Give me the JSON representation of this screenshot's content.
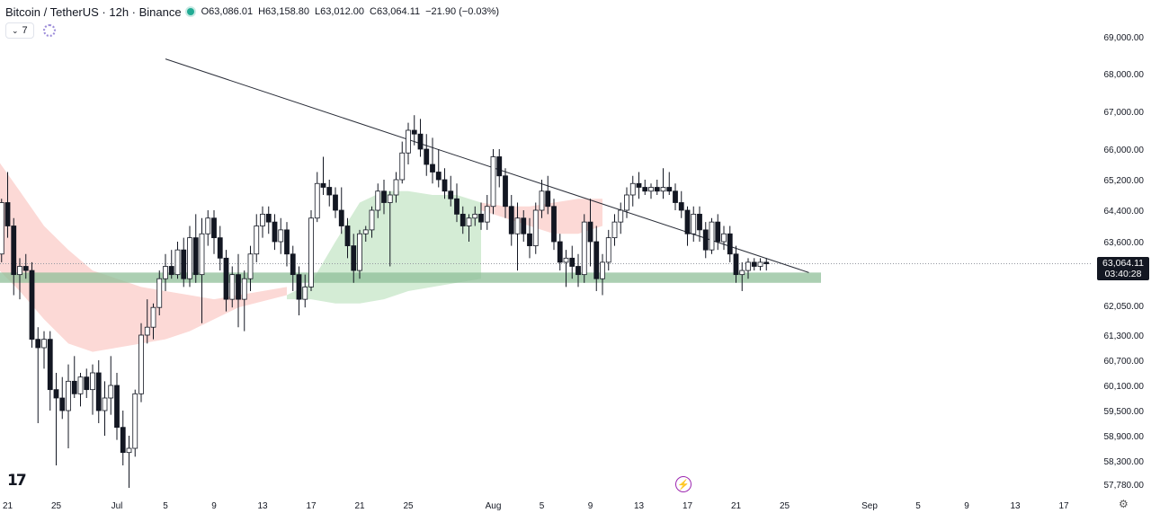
{
  "header": {
    "title": "Bitcoin / TetherUS · 12h · Binance",
    "open": "O63,086.01",
    "high": "H63,158.80",
    "low": "L63,012.00",
    "close": "C63,064.11",
    "change": "−21.90 (−0.03%)"
  },
  "indicators": {
    "count": "7"
  },
  "price_tag": {
    "price": "63,064.11",
    "countdown": "03:40:28"
  },
  "colors": {
    "up": "#ffffff",
    "down": "#131722",
    "cloud_bear": "#fcd9d6",
    "cloud_bull": "#d4ecd5",
    "support_zone": "#8fbf98",
    "trendline": "#2a2e39",
    "last_price_line": "#9598a1"
  },
  "icons": {
    "logo": "tradingview-logo-icon",
    "bolt": "lightning-icon",
    "settings": "gear-icon"
  },
  "chart_data": {
    "type": "candlestick",
    "interval": "12h",
    "ylim": [
      57700,
      69300
    ],
    "y_scale": "non-linear (axis labels unevenly spaced)",
    "y_ticks": [
      "69,000.00",
      "68,000.00",
      "67,000.00",
      "66,000.00",
      "65,200.00",
      "64,400.00",
      "63,600.00",
      "62,050.00",
      "61,300.00",
      "60,700.00",
      "60,100.00",
      "59,500.00",
      "58,900.00",
      "58,300.00",
      "57,780.00"
    ],
    "y_tick_values": [
      69000,
      68000,
      67000,
      66000,
      65200,
      64400,
      63600,
      62050,
      61300,
      60700,
      60100,
      59500,
      58900,
      58300,
      57780
    ],
    "x_ticks": [
      "21",
      "25",
      "Jul",
      "5",
      "9",
      "13",
      "17",
      "21",
      "25",
      "Aug",
      "5",
      "9",
      "13",
      "17",
      "21",
      "25",
      "Sep",
      "5",
      "9",
      "13",
      "17"
    ],
    "x_tick_days": [
      21,
      25,
      30,
      34,
      38,
      42,
      46,
      50,
      54,
      61,
      65,
      69,
      73,
      77,
      81,
      85,
      92,
      96,
      100,
      104,
      108
    ],
    "x_note": "days counted from June 1",
    "last_price": 63064.11,
    "candles": [
      {
        "t": 19.5,
        "o": 64200,
        "h": 64600,
        "l": 63800,
        "c": 64000
      },
      {
        "t": 20.0,
        "o": 64000,
        "h": 64400,
        "l": 63200,
        "c": 63300
      },
      {
        "t": 20.5,
        "o": 63300,
        "h": 64700,
        "l": 63100,
        "c": 64600
      },
      {
        "t": 21.0,
        "o": 64600,
        "h": 65400,
        "l": 63700,
        "c": 64000
      },
      {
        "t": 21.5,
        "o": 64000,
        "h": 64200,
        "l": 62300,
        "c": 62800
      },
      {
        "t": 22.0,
        "o": 62800,
        "h": 63200,
        "l": 62200,
        "c": 63000
      },
      {
        "t": 22.5,
        "o": 63000,
        "h": 63300,
        "l": 62700,
        "c": 62900
      },
      {
        "t": 23.0,
        "o": 62900,
        "h": 63100,
        "l": 61000,
        "c": 61200
      },
      {
        "t": 23.5,
        "o": 61200,
        "h": 61500,
        "l": 59200,
        "c": 61000
      },
      {
        "t": 24.0,
        "o": 61000,
        "h": 61400,
        "l": 60500,
        "c": 61200
      },
      {
        "t": 24.5,
        "o": 61200,
        "h": 61400,
        "l": 59500,
        "c": 60000
      },
      {
        "t": 25.0,
        "o": 60000,
        "h": 60400,
        "l": 58200,
        "c": 59800
      },
      {
        "t": 25.5,
        "o": 59800,
        "h": 60300,
        "l": 59300,
        "c": 59500
      },
      {
        "t": 26.0,
        "o": 59500,
        "h": 60600,
        "l": 58600,
        "c": 60200
      },
      {
        "t": 26.5,
        "o": 60200,
        "h": 60800,
        "l": 59800,
        "c": 59900
      },
      {
        "t": 27.0,
        "o": 59900,
        "h": 60400,
        "l": 59600,
        "c": 60300
      },
      {
        "t": 27.5,
        "o": 60300,
        "h": 60500,
        "l": 59800,
        "c": 60000
      },
      {
        "t": 28.0,
        "o": 60000,
        "h": 60600,
        "l": 59400,
        "c": 60400
      },
      {
        "t": 28.5,
        "o": 60400,
        "h": 60700,
        "l": 59200,
        "c": 59500
      },
      {
        "t": 29.0,
        "o": 59500,
        "h": 60200,
        "l": 58900,
        "c": 59800
      },
      {
        "t": 29.5,
        "o": 59800,
        "h": 60800,
        "l": 59400,
        "c": 60100
      },
      {
        "t": 30.0,
        "o": 60100,
        "h": 60400,
        "l": 58800,
        "c": 59100
      },
      {
        "t": 30.5,
        "o": 59100,
        "h": 59500,
        "l": 58200,
        "c": 58500
      },
      {
        "t": 31.0,
        "o": 58500,
        "h": 58900,
        "l": 57700,
        "c": 58600
      },
      {
        "t": 31.5,
        "o": 58600,
        "h": 60000,
        "l": 58400,
        "c": 59900
      },
      {
        "t": 32.0,
        "o": 59900,
        "h": 61600,
        "l": 59700,
        "c": 61300
      },
      {
        "t": 32.5,
        "o": 61300,
        "h": 62200,
        "l": 61100,
        "c": 61500
      },
      {
        "t": 33.0,
        "o": 61500,
        "h": 62100,
        "l": 61200,
        "c": 62000
      },
      {
        "t": 33.5,
        "o": 62000,
        "h": 62900,
        "l": 61800,
        "c": 62700
      },
      {
        "t": 34.0,
        "o": 62700,
        "h": 63300,
        "l": 62400,
        "c": 63000
      },
      {
        "t": 34.5,
        "o": 63000,
        "h": 63400,
        "l": 62700,
        "c": 62800
      },
      {
        "t": 35.0,
        "o": 62800,
        "h": 63600,
        "l": 62700,
        "c": 63400
      },
      {
        "t": 35.5,
        "o": 63400,
        "h": 63700,
        "l": 62500,
        "c": 62700
      },
      {
        "t": 36.0,
        "o": 62700,
        "h": 64000,
        "l": 62500,
        "c": 63700
      },
      {
        "t": 36.5,
        "o": 63700,
        "h": 64300,
        "l": 62600,
        "c": 62800
      },
      {
        "t": 37.0,
        "o": 62800,
        "h": 64200,
        "l": 61600,
        "c": 63800
      },
      {
        "t": 37.5,
        "o": 63800,
        "h": 64400,
        "l": 63500,
        "c": 64200
      },
      {
        "t": 38.0,
        "o": 64200,
        "h": 64400,
        "l": 63300,
        "c": 63700
      },
      {
        "t": 38.5,
        "o": 63700,
        "h": 64000,
        "l": 62900,
        "c": 63200
      },
      {
        "t": 39.0,
        "o": 63200,
        "h": 63400,
        "l": 61900,
        "c": 62200
      },
      {
        "t": 39.5,
        "o": 62200,
        "h": 63000,
        "l": 62000,
        "c": 62800
      },
      {
        "t": 40.0,
        "o": 62800,
        "h": 63300,
        "l": 61500,
        "c": 62200
      },
      {
        "t": 40.5,
        "o": 62200,
        "h": 62900,
        "l": 61400,
        "c": 62700
      },
      {
        "t": 41.0,
        "o": 62700,
        "h": 63500,
        "l": 62400,
        "c": 63300
      },
      {
        "t": 41.5,
        "o": 63300,
        "h": 64300,
        "l": 63100,
        "c": 64000
      },
      {
        "t": 42.0,
        "o": 64000,
        "h": 64500,
        "l": 63700,
        "c": 64300
      },
      {
        "t": 42.5,
        "o": 64300,
        "h": 64500,
        "l": 63800,
        "c": 64100
      },
      {
        "t": 43.0,
        "o": 64100,
        "h": 64300,
        "l": 63400,
        "c": 63600
      },
      {
        "t": 43.5,
        "o": 63600,
        "h": 64200,
        "l": 63300,
        "c": 63900
      },
      {
        "t": 44.0,
        "o": 63900,
        "h": 64100,
        "l": 63000,
        "c": 63300
      },
      {
        "t": 44.5,
        "o": 63300,
        "h": 63500,
        "l": 62400,
        "c": 62800
      },
      {
        "t": 45.0,
        "o": 62800,
        "h": 63000,
        "l": 61800,
        "c": 62200
      },
      {
        "t": 45.5,
        "o": 62200,
        "h": 62800,
        "l": 62000,
        "c": 62500
      },
      {
        "t": 46.0,
        "o": 62500,
        "h": 64400,
        "l": 62400,
        "c": 64200
      },
      {
        "t": 46.5,
        "o": 64200,
        "h": 65400,
        "l": 64100,
        "c": 65100
      },
      {
        "t": 47.0,
        "o": 65100,
        "h": 65800,
        "l": 64800,
        "c": 65000
      },
      {
        "t": 47.5,
        "o": 65000,
        "h": 65200,
        "l": 64500,
        "c": 64800
      },
      {
        "t": 48.0,
        "o": 64800,
        "h": 65000,
        "l": 64200,
        "c": 64400
      },
      {
        "t": 48.5,
        "o": 64400,
        "h": 65000,
        "l": 63800,
        "c": 64000
      },
      {
        "t": 49.0,
        "o": 64000,
        "h": 64200,
        "l": 63200,
        "c": 63500
      },
      {
        "t": 49.5,
        "o": 63500,
        "h": 63800,
        "l": 62600,
        "c": 62900
      },
      {
        "t": 50.0,
        "o": 62900,
        "h": 63900,
        "l": 62700,
        "c": 63800
      },
      {
        "t": 50.5,
        "o": 63800,
        "h": 64000,
        "l": 63600,
        "c": 63900
      },
      {
        "t": 51.0,
        "o": 63900,
        "h": 64500,
        "l": 63700,
        "c": 64400
      },
      {
        "t": 51.5,
        "o": 64400,
        "h": 65100,
        "l": 64200,
        "c": 64900
      },
      {
        "t": 52.0,
        "o": 64900,
        "h": 65200,
        "l": 64300,
        "c": 64600
      },
      {
        "t": 52.5,
        "o": 64600,
        "h": 64900,
        "l": 63000,
        "c": 64800
      },
      {
        "t": 53.0,
        "o": 64800,
        "h": 65400,
        "l": 64600,
        "c": 65200
      },
      {
        "t": 53.5,
        "o": 65200,
        "h": 66200,
        "l": 65100,
        "c": 65900
      },
      {
        "t": 54.0,
        "o": 65900,
        "h": 66700,
        "l": 65600,
        "c": 66500
      },
      {
        "t": 54.5,
        "o": 66500,
        "h": 66900,
        "l": 66100,
        "c": 66400
      },
      {
        "t": 55.0,
        "o": 66400,
        "h": 66800,
        "l": 65800,
        "c": 66000
      },
      {
        "t": 55.5,
        "o": 66000,
        "h": 66400,
        "l": 65300,
        "c": 65600
      },
      {
        "t": 56.0,
        "o": 65600,
        "h": 66300,
        "l": 65100,
        "c": 65400
      },
      {
        "t": 56.5,
        "o": 65400,
        "h": 66000,
        "l": 65000,
        "c": 65200
      },
      {
        "t": 57.0,
        "o": 65200,
        "h": 65500,
        "l": 64700,
        "c": 64900
      },
      {
        "t": 57.5,
        "o": 64900,
        "h": 65300,
        "l": 64500,
        "c": 64700
      },
      {
        "t": 58.0,
        "o": 64700,
        "h": 65100,
        "l": 64100,
        "c": 64300
      },
      {
        "t": 58.5,
        "o": 64300,
        "h": 64500,
        "l": 63800,
        "c": 64000
      },
      {
        "t": 59.0,
        "o": 64000,
        "h": 64300,
        "l": 63600,
        "c": 64200
      },
      {
        "t": 59.5,
        "o": 64200,
        "h": 64500,
        "l": 64000,
        "c": 64300
      },
      {
        "t": 60.0,
        "o": 64300,
        "h": 64600,
        "l": 63900,
        "c": 64100
      },
      {
        "t": 60.5,
        "o": 64100,
        "h": 64800,
        "l": 63900,
        "c": 64500
      },
      {
        "t": 61.0,
        "o": 64500,
        "h": 66000,
        "l": 64300,
        "c": 65800
      },
      {
        "t": 61.5,
        "o": 65800,
        "h": 66000,
        "l": 65000,
        "c": 65300
      },
      {
        "t": 62.0,
        "o": 65300,
        "h": 65500,
        "l": 64200,
        "c": 64500
      },
      {
        "t": 62.5,
        "o": 64500,
        "h": 64800,
        "l": 63500,
        "c": 63800
      },
      {
        "t": 63.0,
        "o": 63800,
        "h": 64600,
        "l": 62900,
        "c": 64200
      },
      {
        "t": 63.5,
        "o": 64200,
        "h": 64400,
        "l": 63600,
        "c": 63800
      },
      {
        "t": 64.0,
        "o": 63800,
        "h": 64200,
        "l": 63200,
        "c": 63500
      },
      {
        "t": 64.5,
        "o": 63500,
        "h": 64600,
        "l": 63300,
        "c": 64400
      },
      {
        "t": 65.0,
        "o": 64400,
        "h": 65200,
        "l": 64200,
        "c": 64900
      },
      {
        "t": 65.5,
        "o": 64900,
        "h": 65300,
        "l": 64300,
        "c": 64500
      },
      {
        "t": 66.0,
        "o": 64500,
        "h": 64700,
        "l": 63400,
        "c": 63600
      },
      {
        "t": 66.5,
        "o": 63600,
        "h": 63800,
        "l": 62900,
        "c": 63100
      },
      {
        "t": 67.0,
        "o": 63100,
        "h": 63400,
        "l": 62500,
        "c": 63200
      },
      {
        "t": 67.5,
        "o": 63200,
        "h": 63500,
        "l": 62700,
        "c": 63000
      },
      {
        "t": 68.0,
        "o": 63000,
        "h": 63300,
        "l": 62500,
        "c": 62800
      },
      {
        "t": 68.5,
        "o": 62800,
        "h": 64300,
        "l": 62600,
        "c": 64100
      },
      {
        "t": 69.0,
        "o": 64100,
        "h": 64700,
        "l": 63000,
        "c": 63600
      },
      {
        "t": 69.5,
        "o": 63600,
        "h": 64000,
        "l": 62400,
        "c": 62700
      },
      {
        "t": 70.0,
        "o": 62700,
        "h": 63300,
        "l": 62300,
        "c": 63100
      },
      {
        "t": 70.5,
        "o": 63100,
        "h": 63900,
        "l": 62900,
        "c": 63700
      },
      {
        "t": 71.0,
        "o": 63700,
        "h": 64300,
        "l": 63500,
        "c": 64100
      },
      {
        "t": 71.5,
        "o": 64100,
        "h": 64600,
        "l": 63800,
        "c": 64400
      },
      {
        "t": 72.0,
        "o": 64400,
        "h": 65000,
        "l": 64200,
        "c": 64800
      },
      {
        "t": 72.5,
        "o": 64800,
        "h": 65300,
        "l": 64500,
        "c": 65100
      },
      {
        "t": 73.0,
        "o": 65100,
        "h": 65400,
        "l": 64700,
        "c": 65000
      },
      {
        "t": 73.5,
        "o": 65000,
        "h": 65200,
        "l": 64800,
        "c": 64900
      },
      {
        "t": 74.0,
        "o": 64900,
        "h": 65100,
        "l": 64700,
        "c": 65000
      },
      {
        "t": 74.5,
        "o": 65000,
        "h": 65200,
        "l": 64800,
        "c": 64900
      },
      {
        "t": 75.0,
        "o": 64900,
        "h": 65500,
        "l": 64700,
        "c": 65000
      },
      {
        "t": 75.5,
        "o": 65000,
        "h": 65400,
        "l": 64800,
        "c": 64900
      },
      {
        "t": 76.0,
        "o": 64900,
        "h": 65100,
        "l": 64400,
        "c": 64600
      },
      {
        "t": 76.5,
        "o": 64600,
        "h": 64900,
        "l": 64200,
        "c": 64400
      },
      {
        "t": 77.0,
        "o": 64400,
        "h": 64500,
        "l": 63500,
        "c": 63800
      },
      {
        "t": 77.5,
        "o": 63800,
        "h": 64500,
        "l": 63600,
        "c": 64300
      },
      {
        "t": 78.0,
        "o": 64300,
        "h": 64500,
        "l": 63600,
        "c": 63900
      },
      {
        "t": 78.5,
        "o": 63900,
        "h": 64100,
        "l": 63200,
        "c": 63400
      },
      {
        "t": 79.0,
        "o": 63400,
        "h": 64200,
        "l": 63300,
        "c": 64100
      },
      {
        "t": 79.5,
        "o": 64100,
        "h": 64300,
        "l": 63400,
        "c": 63600
      },
      {
        "t": 80.0,
        "o": 63600,
        "h": 64000,
        "l": 63400,
        "c": 63800
      },
      {
        "t": 80.5,
        "o": 63800,
        "h": 64000,
        "l": 63100,
        "c": 63300
      },
      {
        "t": 81.0,
        "o": 63300,
        "h": 63500,
        "l": 62600,
        "c": 62800
      },
      {
        "t": 81.5,
        "o": 62800,
        "h": 63100,
        "l": 62400,
        "c": 62900
      },
      {
        "t": 82.0,
        "o": 62900,
        "h": 63200,
        "l": 62700,
        "c": 63100
      },
      {
        "t": 82.5,
        "o": 63100,
        "h": 63200,
        "l": 62900,
        "c": 63000
      },
      {
        "t": 83.0,
        "o": 63000,
        "h": 63200,
        "l": 62900,
        "c": 63100
      },
      {
        "t": 83.5,
        "o": 63100,
        "h": 63200,
        "l": 62900,
        "c": 63064
      }
    ],
    "trendline": {
      "points": [
        [
          34.0,
          68400
        ],
        [
          87.0,
          62850
        ]
      ]
    },
    "support_zone": {
      "from": 18.0,
      "to": 88.0,
      "low": 62600,
      "high": 62850
    },
    "cloud_bear": [
      [
        0,
        68300,
        64800
      ],
      [
        4,
        68300,
        64700
      ],
      [
        8,
        68200,
        64600
      ],
      [
        10,
        68100,
        64500
      ],
      [
        12,
        67600,
        64300
      ],
      [
        14,
        67200,
        64200
      ],
      [
        16,
        66900,
        64000
      ],
      [
        18,
        66600,
        63700
      ],
      [
        20,
        65800,
        63000
      ],
      [
        22,
        64900,
        62400
      ],
      [
        24,
        64000,
        61700
      ],
      [
        26,
        63400,
        61100
      ],
      [
        28,
        62900,
        60900
      ],
      [
        30,
        62700,
        61000
      ],
      [
        32,
        62500,
        61100
      ],
      [
        34,
        62400,
        61200
      ],
      [
        36,
        62300,
        61400
      ],
      [
        38,
        62200,
        61700
      ],
      [
        40,
        62300,
        62000
      ],
      [
        42,
        62400,
        62150
      ],
      [
        44,
        62500,
        62300
      ]
    ],
    "cloud_bull": [
      [
        44,
        62300,
        62200
      ],
      [
        46,
        62600,
        62200
      ],
      [
        48,
        63600,
        62100
      ],
      [
        50,
        64600,
        62100
      ],
      [
        52,
        64900,
        62200
      ],
      [
        54,
        64900,
        62400
      ],
      [
        56,
        64800,
        62500
      ],
      [
        58,
        64800,
        62600
      ],
      [
        60,
        64600,
        62700
      ]
    ],
    "cloud_bear_2": [
      [
        60,
        64600,
        64400
      ],
      [
        62,
        64500,
        64200
      ],
      [
        64,
        64500,
        64000
      ],
      [
        66,
        64600,
        63800
      ],
      [
        68,
        64700,
        63800
      ],
      [
        70,
        64700,
        64000
      ]
    ]
  }
}
